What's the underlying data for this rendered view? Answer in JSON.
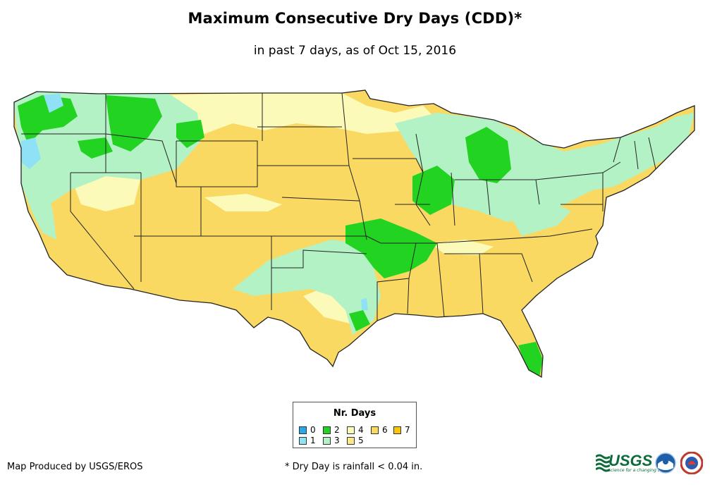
{
  "title": "Maximum Consecutive Dry Days (CDD)*",
  "subtitle": "in past 7 days, as of Oct 15, 2016",
  "legend": {
    "title": "Nr. Days",
    "items": [
      {
        "label": "0",
        "color": "#2aa7e8"
      },
      {
        "label": "1",
        "color": "#8fe2f5"
      },
      {
        "label": "2",
        "color": "#22d322"
      },
      {
        "label": "3",
        "color": "#b3f2c5"
      },
      {
        "label": "4",
        "color": "#fcfab9"
      },
      {
        "label": "5",
        "color": "#fde98a"
      },
      {
        "label": "6",
        "color": "#fad962"
      },
      {
        "label": "7",
        "color": "#fcc40c"
      }
    ]
  },
  "footer": {
    "credit": "Map Produced by USGS/EROS",
    "footnote": "* Dry Day is rainfall < 0.04 in."
  },
  "logos": {
    "usgs": "USGS",
    "usgs_tagline": "science for a changing world",
    "noaa": "NOAA",
    "nws": "National Weather Service"
  }
}
